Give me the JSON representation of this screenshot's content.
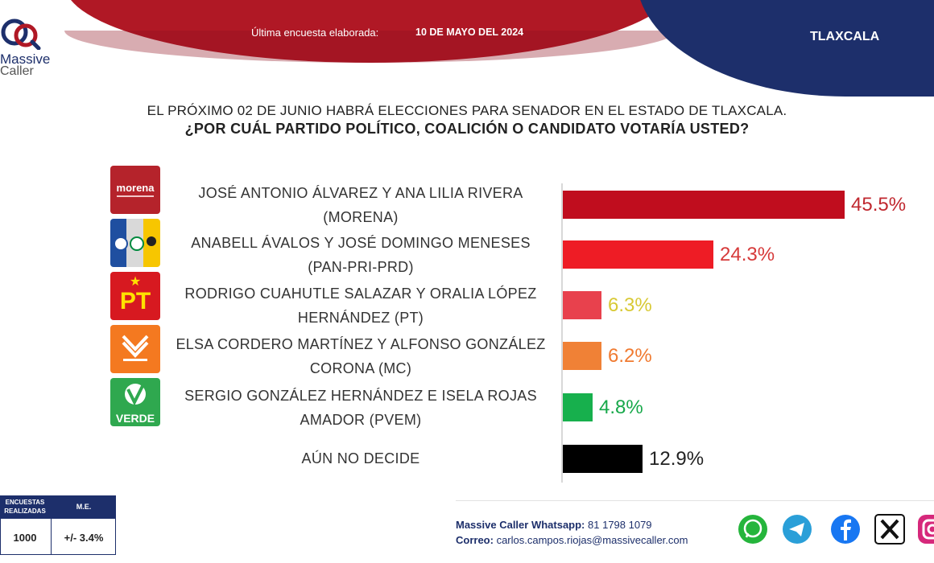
{
  "header": {
    "text": "Última encuesta elaborada:",
    "date": "10 DE MAYO DEL 2024",
    "state": "TLAXCALA"
  },
  "logo": {
    "line1": "Massive",
    "line2": "Caller"
  },
  "question": {
    "line1": "EL PRÓXIMO 02 DE JUNIO HABRÁ ELECCIONES PARA SENADOR EN EL ESTADO DE TLAXCALA.",
    "line2": "¿POR CUÁL PARTIDO POLÍTICO, COALICIÓN O CANDIDATO  VOTARÍA USTED?"
  },
  "chart_data": {
    "type": "bar",
    "orientation": "horizontal",
    "categories": [
      "JOSÉ ANTONIO ÁLVAREZ Y ANA LILIA RIVERA (MORENA)",
      "ANABELL ÁVALOS Y JOSÉ DOMINGO MENESES (PAN-PRI-PRD)",
      "RODRIGO CUAHUTLE SALAZAR Y ORALIA LÓPEZ HERNÁNDEZ (PT)",
      "ELSA CORDERO MARTÍNEZ Y ALFONSO GONZÁLEZ CORONA (MC)",
      "SERGIO GONZÁLEZ HERNÁNDEZ  E ISELA ROJAS AMADOR (PVEM)",
      "AÚN NO DECIDE"
    ],
    "values": [
      45.5,
      24.3,
      6.3,
      6.2,
      4.8,
      12.9
    ],
    "value_labels": [
      "45.5%",
      "24.3%",
      "6.3%",
      "6.2%",
      "4.8%",
      "12.9%"
    ],
    "bar_colors": [
      "#c00d1e",
      "#ee1c25",
      "#e8414d",
      "#f08136",
      "#17b04d",
      "#000000"
    ],
    "label_colors": [
      "#c0282f",
      "#d63a3a",
      "#d8c934",
      "#f07a30",
      "#17a84a",
      "#222222"
    ],
    "rows": [
      {
        "line1": "JOSÉ ANTONIO ÁLVAREZ Y ANA LILIA RIVERA",
        "line2": "(MORENA)"
      },
      {
        "line1": "ANABELL ÁVALOS Y JOSÉ DOMINGO MENESES",
        "line2": "(PAN-PRI-PRD)"
      },
      {
        "line1": "RODRIGO CUAHUTLE SALAZAR Y ORALIA LÓPEZ",
        "line2": "HERNÁNDEZ (PT)"
      },
      {
        "line1": "ELSA CORDERO MARTÍNEZ Y ALFONSO GONZÁLEZ",
        "line2": "CORONA (MC)"
      },
      {
        "line1": "SERGIO GONZÁLEZ HERNÁNDEZ  E ISELA ROJAS",
        "line2": "AMADOR (PVEM)"
      },
      {
        "line1": "AÚN NO DECIDE",
        "line2": ""
      }
    ]
  },
  "party_logos": [
    {
      "icon": "morena-logo",
      "text": "morena",
      "color": "#b5232b"
    },
    {
      "icon": "pan-pri-prd-logo",
      "color": "#1f4fa0"
    },
    {
      "icon": "pt-logo",
      "text": "PT",
      "color": "#d71920"
    },
    {
      "icon": "mc-logo",
      "color": "#f47920"
    },
    {
      "icon": "pvem-logo",
      "text": "VERDE",
      "color": "#2fa84f"
    }
  ],
  "table": {
    "h1a": "ENCUESTAS",
    "h1b": "REALIZADAS",
    "h2": "M.E.",
    "v1": "1000",
    "v2": "+/- 3.4%"
  },
  "footer": {
    "wa_label": "Massive Caller Whatsapp:",
    "wa_number": "81 1798 1079",
    "mail_label": "Correo:",
    "mail": "carlos.campos.riojas@massivecaller.com"
  },
  "social": [
    {
      "icon": "whatsapp-icon",
      "color": "#25b53c"
    },
    {
      "icon": "telegram-icon",
      "color": "#2a9fd8"
    },
    {
      "icon": "facebook-icon",
      "color": "#1877f2"
    },
    {
      "icon": "x-icon",
      "color": "#111111"
    },
    {
      "icon": "instagram-icon",
      "color": "#d6287b"
    }
  ]
}
